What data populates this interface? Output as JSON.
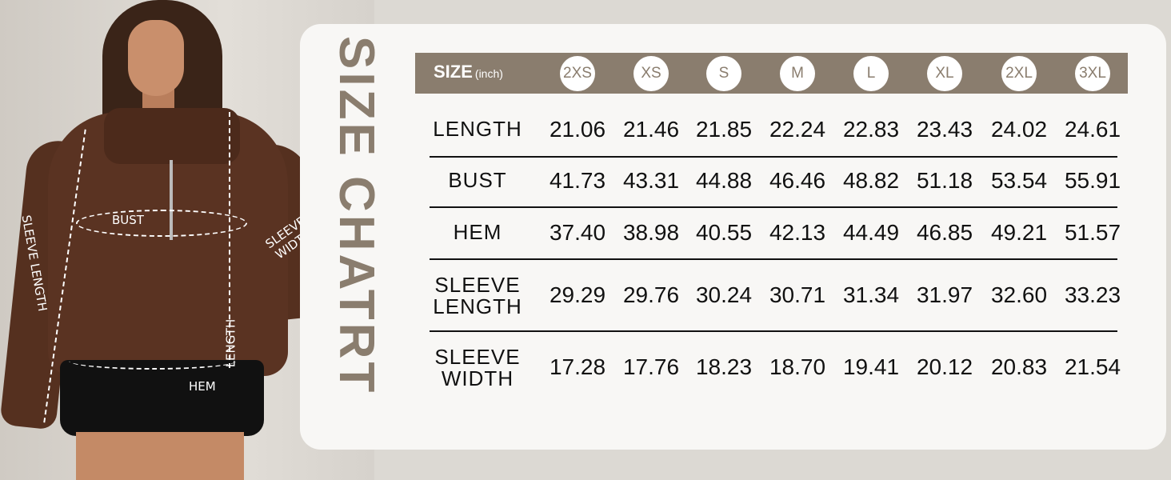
{
  "title": "SIZE CHATRT",
  "header": {
    "size_label": "SIZE",
    "unit_label": "(inch)"
  },
  "sizes": [
    "2XS",
    "XS",
    "S",
    "M",
    "L",
    "XL",
    "2XL",
    "3XL"
  ],
  "rows": [
    {
      "label": "LENGTH",
      "values": [
        "21.06",
        "21.46",
        "21.85",
        "22.24",
        "22.83",
        "23.43",
        "24.02",
        "24.61"
      ]
    },
    {
      "label": "BUST",
      "values": [
        "41.73",
        "43.31",
        "44.88",
        "46.46",
        "48.82",
        "51.18",
        "53.54",
        "55.91"
      ]
    },
    {
      "label": "HEM",
      "values": [
        "37.40",
        "38.98",
        "40.55",
        "42.13",
        "44.49",
        "46.85",
        "49.21",
        "51.57"
      ]
    },
    {
      "label": "SLEEVE LENGTH",
      "values": [
        "29.29",
        "29.76",
        "30.24",
        "30.71",
        "31.34",
        "31.97",
        "32.60",
        "33.23"
      ]
    },
    {
      "label": "SLEEVE WIDTH",
      "values": [
        "17.28",
        "17.76",
        "18.23",
        "18.70",
        "19.41",
        "20.12",
        "20.83",
        "21.54"
      ]
    }
  ],
  "photo_labels": {
    "bust": "BUST",
    "sleeve_width": "SLEEVE WIDTH",
    "sleeve_length": "SLEEVE LENGTH",
    "length": "LENGTH",
    "hem": "HEM"
  },
  "colors": {
    "accent": "#8a7d6e",
    "card": "#f8f7f5",
    "background": "#dcd9d3"
  }
}
